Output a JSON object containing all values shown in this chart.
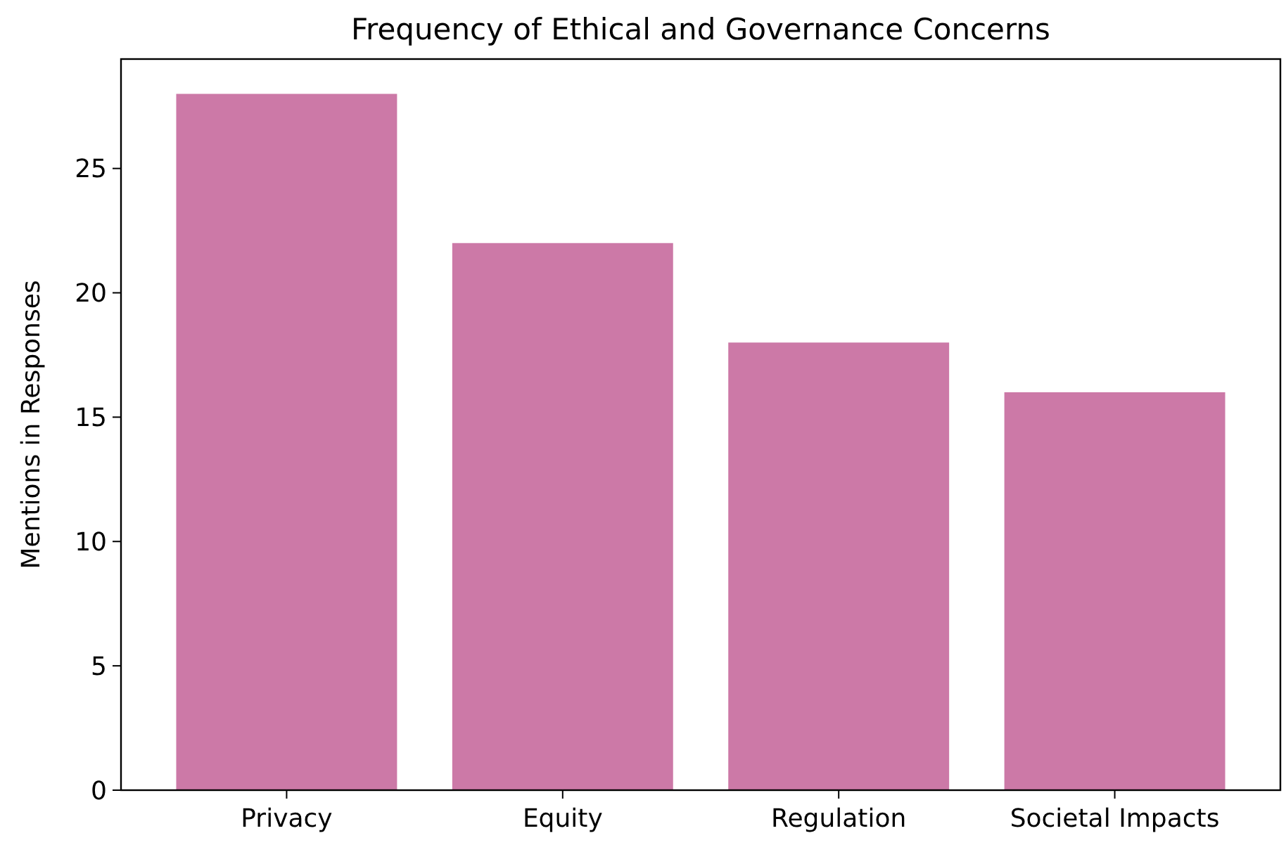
{
  "chart_data": {
    "type": "bar",
    "title": "Frequency of Ethical and Governance Concerns",
    "ylabel": "Mentions in Responses",
    "categories": [
      "Privacy",
      "Equity",
      "Regulation",
      "Societal Impacts"
    ],
    "values": [
      28,
      22,
      18,
      16
    ],
    "color": "#cc79a7",
    "ylim": [
      0,
      29.4
    ],
    "yticks": [
      0,
      5,
      10,
      15,
      20,
      25
    ],
    "grid": false
  }
}
